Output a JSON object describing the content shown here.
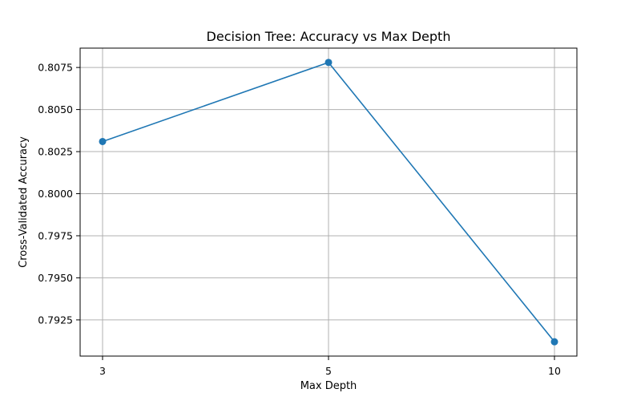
{
  "chart_data": {
    "type": "line",
    "title": "Decision Tree: Accuracy vs Max Depth",
    "xlabel": "Max Depth",
    "ylabel": "Cross-Validated Accuracy",
    "categories": [
      "3",
      "5",
      "10"
    ],
    "series": [
      {
        "values": [
          0.8031,
          0.8078,
          0.7912
        ],
        "color": "#1f77b4",
        "marker": "circle"
      }
    ],
    "yticks": [
      "0.7925",
      "0.7950",
      "0.7975",
      "0.8000",
      "0.8025",
      "0.8050",
      "0.8075"
    ],
    "ylim": [
      0.79035,
      0.80865
    ],
    "grid": true,
    "legend": "none"
  }
}
